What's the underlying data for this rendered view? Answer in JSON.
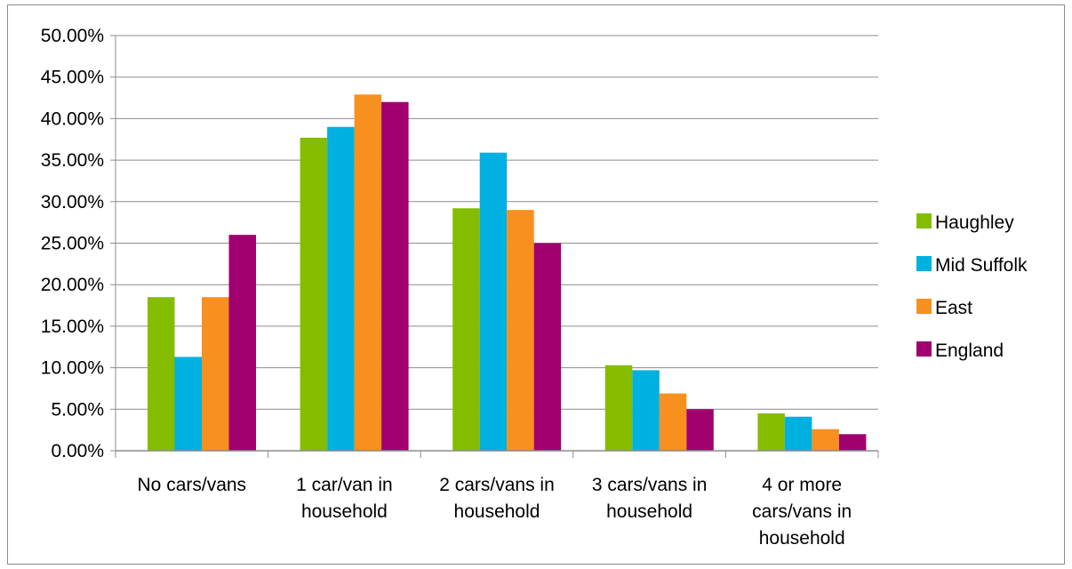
{
  "chart_data": {
    "type": "bar",
    "categories": [
      [
        "No cars/vans"
      ],
      [
        "1 car/van in",
        "household"
      ],
      [
        "2 cars/vans in",
        "household"
      ],
      [
        "3 cars/vans in",
        "household"
      ],
      [
        "4 or more",
        "cars/vans in",
        "household"
      ]
    ],
    "series": [
      {
        "name": "Haughley",
        "color": "#84bd00",
        "values": [
          18.5,
          37.7,
          29.2,
          10.3,
          4.5
        ]
      },
      {
        "name": "Mid Suffolk",
        "color": "#00b0e0",
        "values": [
          11.3,
          39.0,
          35.9,
          9.7,
          4.1
        ]
      },
      {
        "name": "East",
        "color": "#f7901e",
        "values": [
          18.5,
          42.9,
          29.0,
          6.9,
          2.6
        ]
      },
      {
        "name": "England",
        "color": "#a0006e",
        "values": [
          26.0,
          42.0,
          25.0,
          5.0,
          2.0
        ]
      }
    ],
    "ylim": [
      0,
      50
    ],
    "yticks": [
      "0.00%",
      "5.00%",
      "10.00%",
      "15.00%",
      "20.00%",
      "25.00%",
      "30.00%",
      "35.00%",
      "40.00%",
      "45.00%",
      "50.00%"
    ],
    "grid": true,
    "legend_position": "right",
    "title": "",
    "xlabel": "",
    "ylabel": ""
  }
}
